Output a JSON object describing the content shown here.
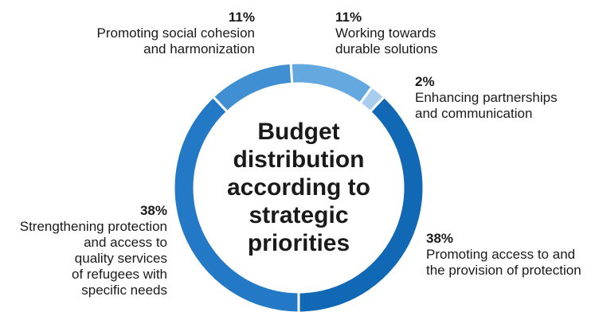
{
  "chart_data": {
    "type": "pie",
    "variant": "donut",
    "title_lines": [
      "Budget",
      "distribution",
      "according to",
      "strategic",
      "priorities"
    ],
    "slices": [
      {
        "label": "Promoting access to and the provision of protection",
        "label_lines": [
          "Promoting access to and",
          "the provision of protection"
        ],
        "value": 38,
        "value_label": "38%",
        "color": "#1168b4"
      },
      {
        "label": "Strengthening protection and access to quality services of refugees with specific needs",
        "label_lines": [
          "Strengthening protection",
          "and access to",
          "quality services",
          "of refugees with",
          "specific needs"
        ],
        "value": 38,
        "value_label": "38%",
        "color": "#2479c6"
      },
      {
        "label": "Promoting social cohesion and harmonization",
        "label_lines": [
          "Promoting social cohesion",
          "and harmonization"
        ],
        "value": 11,
        "value_label": "11%",
        "color": "#3f8fd2"
      },
      {
        "label": "Working towards durable solutions",
        "label_lines": [
          "Working towards",
          "durable solutions"
        ],
        "value": 11,
        "value_label": "11%",
        "color": "#64a8e0"
      },
      {
        "label": "Enhancing partnerships and communication",
        "label_lines": [
          "Enhancing partnerships",
          "and communication"
        ],
        "value": 2,
        "value_label": "2%",
        "color": "#a9cdee"
      }
    ]
  }
}
